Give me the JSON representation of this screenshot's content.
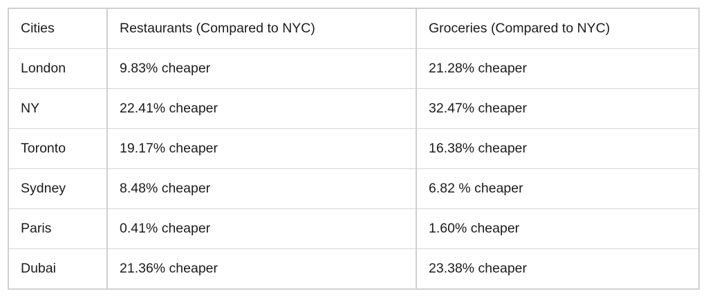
{
  "table": {
    "headers": [
      "Cities",
      "Restaurants (Compared to NYC)",
      "Groceries (Compared to NYC)"
    ],
    "rows": [
      [
        "London",
        "9.83% cheaper",
        "21.28% cheaper"
      ],
      [
        "NY",
        "22.41% cheaper",
        "32.47% cheaper"
      ],
      [
        "Toronto",
        "19.17% cheaper",
        "16.38% cheaper"
      ],
      [
        "Sydney",
        "8.48% cheaper",
        "6.82 % cheaper"
      ],
      [
        "Paris",
        "0.41% cheaper",
        "1.60% cheaper"
      ],
      [
        "Dubai",
        "21.36% cheaper",
        "23.38% cheaper"
      ]
    ]
  }
}
